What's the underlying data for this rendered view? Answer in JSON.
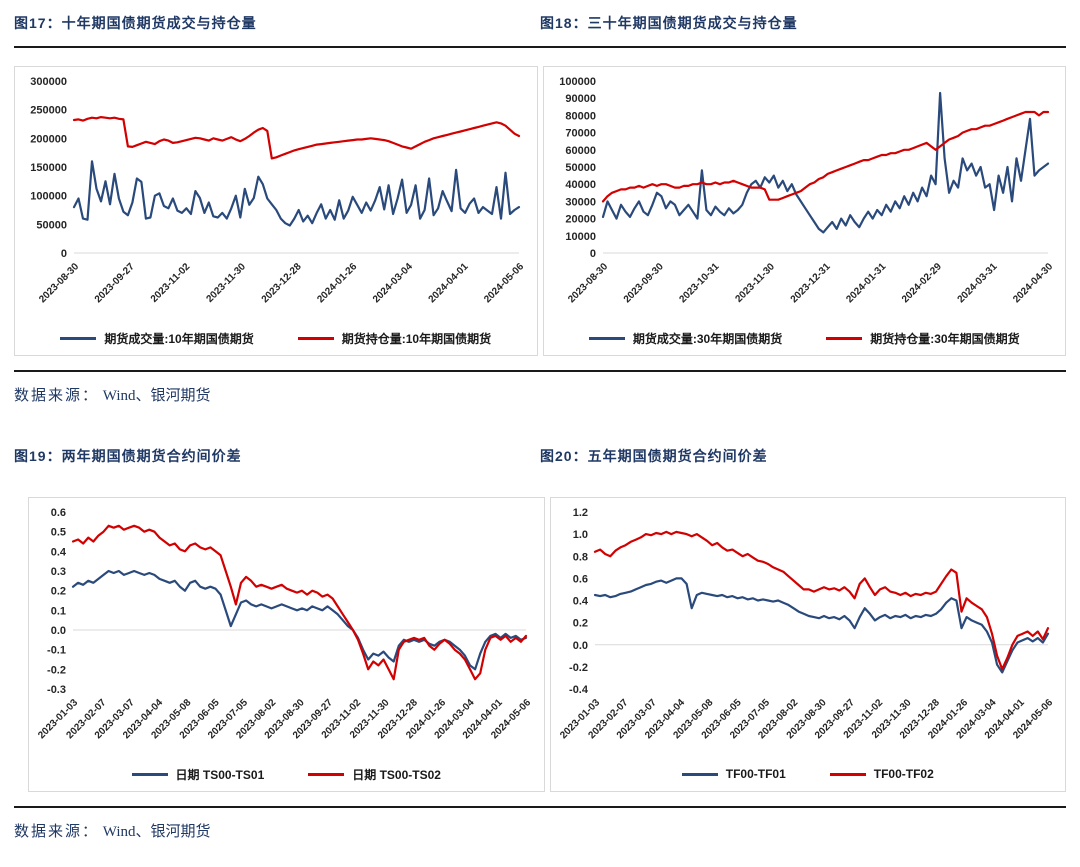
{
  "source": {
    "label": "数据来源：",
    "value": "Wind、银河期货"
  },
  "colors": {
    "title_navy": "#1f3864",
    "volume_blue": "#2a4a7c",
    "oi_red": "#d20000",
    "rule_dark": "#1a1a1a",
    "box_border": "#d9d9d9",
    "baseline_gray": "#d9d9d9"
  },
  "figures": [
    {
      "title": "图17：十年期国债期货成交与持仓量"
    },
    {
      "title": "图18：三十年期国债期货成交与持仓量"
    },
    {
      "title": "图19：两年期国债期货合约间价差"
    },
    {
      "title": "图20：五年期国债期货合约间价差"
    }
  ],
  "chart_data": [
    {
      "type": "line",
      "title": "图17：十年期国债期货成交与持仓量",
      "grid": "zero-baseline-only",
      "legend_position": "bottom",
      "ylim": [
        0,
        300000
      ],
      "y_ticks": [
        0,
        50000,
        100000,
        150000,
        200000,
        250000,
        300000
      ],
      "y_tick_labels": [
        "0",
        "50000",
        "100000",
        "150000",
        "200000",
        "250000",
        "300000"
      ],
      "x_tick_labels": [
        "2023-08-30",
        "2023-09-27",
        "2023-11-02",
        "2023-11-30",
        "2023-12-28",
        "2024-01-26",
        "2024-03-04",
        "2024-04-01",
        "2024-05-06"
      ],
      "series": [
        {
          "name": "期货成交量:10年期国债期货",
          "color": "#2a4a7c",
          "values": [
            80000,
            95000,
            60000,
            58000,
            160000,
            112000,
            90000,
            125000,
            85000,
            138000,
            95000,
            72000,
            66000,
            88000,
            130000,
            124000,
            60000,
            62000,
            100000,
            104000,
            82000,
            78000,
            95000,
            74000,
            70000,
            78000,
            68000,
            108000,
            96000,
            70000,
            88000,
            64000,
            62000,
            70000,
            60000,
            78000,
            100000,
            62000,
            112000,
            84000,
            96000,
            133000,
            120000,
            95000,
            85000,
            75000,
            60000,
            52000,
            48000,
            60000,
            75000,
            55000,
            65000,
            52000,
            70000,
            85000,
            60000,
            75000,
            58000,
            92000,
            60000,
            74000,
            98000,
            84000,
            70000,
            88000,
            74000,
            92000,
            115000,
            76000,
            118000,
            68000,
            95000,
            128000,
            70000,
            84000,
            118000,
            60000,
            75000,
            130000,
            66000,
            78000,
            108000,
            90000,
            73000,
            145000,
            78000,
            70000,
            86000,
            95000,
            70000,
            80000,
            74000,
            68000,
            115000,
            60000,
            140000,
            68000,
            75000,
            80000
          ]
        },
        {
          "name": "期货持仓量:10年期国债期货",
          "color": "#d20000",
          "values": [
            232000,
            233000,
            231000,
            234000,
            236000,
            235000,
            237000,
            236000,
            235000,
            236000,
            234000,
            233000,
            186000,
            185000,
            188000,
            191000,
            194000,
            192000,
            190000,
            195000,
            198000,
            196000,
            192000,
            193000,
            195000,
            197000,
            199000,
            201000,
            200000,
            198000,
            196000,
            200000,
            198000,
            196000,
            199000,
            202000,
            198000,
            195000,
            199000,
            204000,
            210000,
            215000,
            218000,
            213000,
            165000,
            167000,
            170000,
            173000,
            176000,
            179000,
            181000,
            183000,
            185000,
            187000,
            189000,
            190000,
            191000,
            192000,
            193000,
            194000,
            195000,
            196000,
            197000,
            198000,
            198000,
            199000,
            200000,
            199000,
            198000,
            197000,
            195000,
            192000,
            189000,
            186000,
            184000,
            182000,
            186000,
            190000,
            194000,
            197000,
            200000,
            202000,
            204000,
            206000,
            208000,
            210000,
            212000,
            214000,
            216000,
            218000,
            220000,
            222000,
            224000,
            226000,
            228000,
            226000,
            222000,
            215000,
            208000,
            204000
          ]
        }
      ]
    },
    {
      "type": "line",
      "title": "图18：三十年期国债期货成交与持仓量",
      "grid": "zero-baseline-only",
      "legend_position": "bottom",
      "ylim": [
        0,
        100000
      ],
      "y_ticks": [
        0,
        10000,
        20000,
        30000,
        40000,
        50000,
        60000,
        70000,
        80000,
        90000,
        100000
      ],
      "y_tick_labels": [
        "0",
        "10000",
        "20000",
        "30000",
        "40000",
        "50000",
        "60000",
        "70000",
        "80000",
        "90000",
        "100000"
      ],
      "x_tick_labels": [
        "2023-08-30",
        "2023-09-30",
        "2023-10-31",
        "2023-11-30",
        "2023-12-31",
        "2024-01-31",
        "2024-02-29",
        "2024-03-31",
        "2024-04-30"
      ],
      "series": [
        {
          "name": "期货成交量:30年期国债期货",
          "color": "#2a4a7c",
          "values": [
            21000,
            30000,
            25000,
            20000,
            28000,
            24000,
            21000,
            26000,
            30000,
            24000,
            22000,
            28000,
            35000,
            33000,
            26000,
            30000,
            28000,
            22000,
            25000,
            28000,
            24000,
            20000,
            48000,
            25000,
            22000,
            27000,
            24000,
            22000,
            26000,
            23000,
            25000,
            28000,
            35000,
            40000,
            42000,
            38000,
            44000,
            41000,
            45000,
            38000,
            42000,
            36000,
            40000,
            34000,
            30000,
            26000,
            22000,
            18000,
            14000,
            12000,
            15000,
            18000,
            14000,
            20000,
            16000,
            22000,
            18000,
            15000,
            20000,
            24000,
            20000,
            25000,
            22000,
            28000,
            24000,
            30000,
            26000,
            33000,
            28000,
            35000,
            30000,
            38000,
            33000,
            45000,
            40000,
            93000,
            55000,
            35000,
            42000,
            38000,
            55000,
            48000,
            52000,
            45000,
            50000,
            38000,
            40000,
            25000,
            45000,
            35000,
            50000,
            30000,
            55000,
            42000,
            60000,
            78000,
            45000,
            48000,
            50000,
            52000
          ]
        },
        {
          "name": "期货持仓量:30年期国债期货",
          "color": "#d20000",
          "values": [
            30000,
            33000,
            35000,
            36000,
            37000,
            37000,
            38000,
            38000,
            39000,
            38000,
            39000,
            40000,
            39000,
            40000,
            40000,
            39000,
            38000,
            38000,
            39000,
            39000,
            40000,
            40000,
            41000,
            40000,
            40000,
            41000,
            40000,
            41000,
            41000,
            42000,
            41000,
            40000,
            39000,
            38000,
            38000,
            38000,
            37000,
            31000,
            31000,
            31000,
            32000,
            33000,
            34000,
            35000,
            36000,
            38000,
            40000,
            41000,
            43000,
            44000,
            46000,
            47000,
            48000,
            49000,
            50000,
            51000,
            52000,
            53000,
            54000,
            54000,
            55000,
            56000,
            57000,
            57000,
            58000,
            58000,
            59000,
            60000,
            60000,
            61000,
            62000,
            63000,
            64000,
            62000,
            60000,
            62000,
            64000,
            66000,
            67000,
            68000,
            70000,
            71000,
            72000,
            72000,
            73000,
            74000,
            74000,
            75000,
            76000,
            77000,
            78000,
            79000,
            80000,
            81000,
            82000,
            82000,
            82000,
            80000,
            82000,
            82000
          ]
        }
      ]
    },
    {
      "type": "line",
      "title": "图19：两年期国债期货合约间价差",
      "grid": "zero-baseline-only",
      "legend_position": "bottom",
      "ylim": [
        -0.3,
        0.6
      ],
      "y_ticks": [
        -0.3,
        -0.2,
        -0.1,
        0.0,
        0.1,
        0.2,
        0.3,
        0.4,
        0.5,
        0.6
      ],
      "y_tick_labels": [
        "-0.3",
        "-0.2",
        "-0.1",
        "0.0",
        "0.1",
        "0.2",
        "0.3",
        "0.4",
        "0.5",
        "0.6"
      ],
      "x_tick_labels": [
        "2023-01-03",
        "2023-02-07",
        "2023-03-07",
        "2023-04-04",
        "2023-05-08",
        "2023-06-05",
        "2023-07-05",
        "2023-08-02",
        "2023-08-30",
        "2023-09-27",
        "2023-11-02",
        "2023-11-30",
        "2023-12-28",
        "2024-01-26",
        "2024-03-04",
        "2024-04-01",
        "2024-05-06"
      ],
      "series": [
        {
          "name": "日期 TS00-TS01",
          "color": "#2a4a7c",
          "values": [
            0.22,
            0.24,
            0.23,
            0.25,
            0.24,
            0.26,
            0.28,
            0.3,
            0.29,
            0.3,
            0.28,
            0.29,
            0.3,
            0.29,
            0.28,
            0.29,
            0.28,
            0.26,
            0.25,
            0.24,
            0.25,
            0.22,
            0.2,
            0.24,
            0.25,
            0.22,
            0.21,
            0.22,
            0.21,
            0.18,
            0.1,
            0.02,
            0.08,
            0.14,
            0.15,
            0.13,
            0.12,
            0.13,
            0.12,
            0.11,
            0.12,
            0.13,
            0.12,
            0.11,
            0.1,
            0.11,
            0.1,
            0.12,
            0.11,
            0.1,
            0.12,
            0.1,
            0.08,
            0.05,
            0.02,
            0.0,
            -0.04,
            -0.1,
            -0.15,
            -0.12,
            -0.13,
            -0.11,
            -0.14,
            -0.16,
            -0.08,
            -0.05,
            -0.06,
            -0.05,
            -0.06,
            -0.05,
            -0.07,
            -0.08,
            -0.06,
            -0.05,
            -0.06,
            -0.08,
            -0.1,
            -0.13,
            -0.18,
            -0.2,
            -0.12,
            -0.06,
            -0.03,
            -0.02,
            -0.04,
            -0.02,
            -0.04,
            -0.03,
            -0.05,
            -0.04
          ]
        },
        {
          "name": "日期 TS00-TS02",
          "color": "#d20000",
          "values": [
            0.45,
            0.46,
            0.44,
            0.47,
            0.45,
            0.48,
            0.5,
            0.53,
            0.52,
            0.53,
            0.51,
            0.52,
            0.53,
            0.52,
            0.5,
            0.51,
            0.5,
            0.47,
            0.45,
            0.43,
            0.44,
            0.41,
            0.4,
            0.43,
            0.44,
            0.42,
            0.41,
            0.42,
            0.4,
            0.38,
            0.3,
            0.22,
            0.13,
            0.24,
            0.27,
            0.25,
            0.22,
            0.23,
            0.22,
            0.21,
            0.22,
            0.23,
            0.21,
            0.2,
            0.19,
            0.2,
            0.18,
            0.2,
            0.19,
            0.17,
            0.18,
            0.16,
            0.12,
            0.08,
            0.04,
            0.0,
            -0.05,
            -0.12,
            -0.2,
            -0.16,
            -0.18,
            -0.15,
            -0.2,
            -0.25,
            -0.1,
            -0.06,
            -0.05,
            -0.04,
            -0.05,
            -0.04,
            -0.08,
            -0.1,
            -0.07,
            -0.05,
            -0.07,
            -0.1,
            -0.12,
            -0.15,
            -0.2,
            -0.25,
            -0.22,
            -0.1,
            -0.04,
            -0.03,
            -0.05,
            -0.03,
            -0.06,
            -0.04,
            -0.06,
            -0.03
          ]
        }
      ]
    },
    {
      "type": "line",
      "title": "图20：五年期国债期货合约间价差",
      "grid": "zero-baseline-only",
      "legend_position": "bottom",
      "ylim": [
        -0.4,
        1.2
      ],
      "y_ticks": [
        -0.4,
        -0.2,
        0.0,
        0.2,
        0.4,
        0.6,
        0.8,
        1.0,
        1.2
      ],
      "y_tick_labels": [
        "-0.4",
        "-0.2",
        "0.0",
        "0.2",
        "0.4",
        "0.6",
        "0.8",
        "1.0",
        "1.2"
      ],
      "x_tick_labels": [
        "2023-01-03",
        "2023-02-07",
        "2023-03-07",
        "2023-04-04",
        "2023-05-08",
        "2023-06-05",
        "2023-07-05",
        "2023-08-02",
        "2023-08-30",
        "2023-09-27",
        "2023-11-02",
        "2023-11-30",
        "2023-12-28",
        "2024-01-26",
        "2024-03-04",
        "2024-04-01",
        "2024-05-06"
      ],
      "series": [
        {
          "name": "TF00-TF01",
          "color": "#2a4a7c",
          "values": [
            0.45,
            0.44,
            0.45,
            0.43,
            0.44,
            0.46,
            0.47,
            0.48,
            0.5,
            0.52,
            0.54,
            0.55,
            0.57,
            0.58,
            0.56,
            0.58,
            0.6,
            0.6,
            0.55,
            0.33,
            0.45,
            0.47,
            0.46,
            0.45,
            0.44,
            0.45,
            0.43,
            0.44,
            0.42,
            0.43,
            0.41,
            0.42,
            0.4,
            0.41,
            0.4,
            0.39,
            0.4,
            0.38,
            0.36,
            0.33,
            0.3,
            0.28,
            0.26,
            0.25,
            0.24,
            0.26,
            0.24,
            0.25,
            0.23,
            0.26,
            0.22,
            0.15,
            0.25,
            0.33,
            0.28,
            0.22,
            0.25,
            0.27,
            0.24,
            0.26,
            0.25,
            0.27,
            0.24,
            0.26,
            0.25,
            0.27,
            0.26,
            0.28,
            0.32,
            0.38,
            0.42,
            0.4,
            0.15,
            0.25,
            0.22,
            0.2,
            0.18,
            0.12,
            0.02,
            -0.18,
            -0.25,
            -0.15,
            -0.05,
            0.02,
            0.04,
            0.06,
            0.03,
            0.06,
            0.02,
            0.1
          ]
        },
        {
          "name": "TF00-TF02",
          "color": "#d20000",
          "values": [
            0.84,
            0.86,
            0.82,
            0.8,
            0.85,
            0.88,
            0.9,
            0.93,
            0.95,
            0.97,
            1.0,
            0.99,
            1.01,
            1.0,
            1.02,
            1.0,
            1.02,
            1.01,
            1.0,
            0.98,
            1.0,
            0.97,
            0.94,
            0.9,
            0.92,
            0.88,
            0.85,
            0.86,
            0.83,
            0.8,
            0.82,
            0.79,
            0.76,
            0.75,
            0.73,
            0.7,
            0.68,
            0.66,
            0.62,
            0.58,
            0.54,
            0.5,
            0.5,
            0.48,
            0.5,
            0.52,
            0.5,
            0.51,
            0.49,
            0.52,
            0.48,
            0.42,
            0.55,
            0.6,
            0.52,
            0.45,
            0.5,
            0.52,
            0.48,
            0.47,
            0.45,
            0.47,
            0.44,
            0.46,
            0.45,
            0.47,
            0.46,
            0.48,
            0.55,
            0.62,
            0.68,
            0.65,
            0.3,
            0.42,
            0.38,
            0.35,
            0.32,
            0.25,
            0.1,
            -0.1,
            -0.22,
            -0.12,
            0.0,
            0.08,
            0.1,
            0.12,
            0.08,
            0.12,
            0.05,
            0.15
          ]
        }
      ]
    }
  ]
}
